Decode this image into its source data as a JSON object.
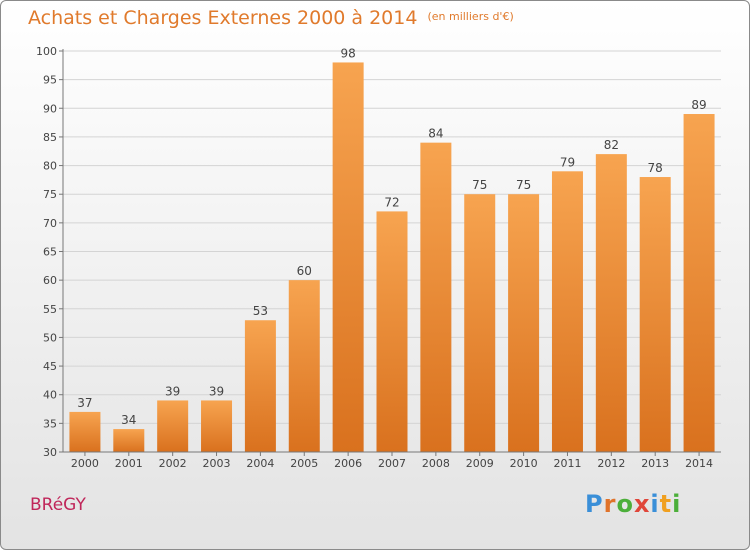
{
  "header": {
    "title": "Achats et Charges Externes 2000 à 2014",
    "unit": "(en milliers d'€)"
  },
  "footer": {
    "commune": "BRéGY",
    "brand_letters": [
      {
        "char": "P",
        "color": "#3a8fd8"
      },
      {
        "char": "r",
        "color": "#e0732a"
      },
      {
        "char": "o",
        "color": "#4caf3a"
      },
      {
        "char": "x",
        "color": "#e0463a"
      },
      {
        "char": "i",
        "color": "#3a8fd8"
      },
      {
        "char": "t",
        "color": "#f0a020"
      },
      {
        "char": "i",
        "color": "#4caf3a"
      }
    ]
  },
  "colors": {
    "bar_top": "#f7a450",
    "bar_bottom": "#d9711e",
    "title": "#e07a2c",
    "commune": "#c0265a"
  },
  "chart_data": {
    "type": "bar",
    "categories": [
      "2000",
      "2001",
      "2002",
      "2003",
      "2004",
      "2005",
      "2006",
      "2007",
      "2008",
      "2009",
      "2010",
      "2011",
      "2012",
      "2013",
      "2014"
    ],
    "values": [
      37,
      34,
      39,
      39,
      53,
      60,
      98,
      72,
      84,
      75,
      75,
      79,
      82,
      78,
      89
    ],
    "title": "Achats et Charges Externes 2000 à 2014",
    "ylim": [
      30,
      100
    ],
    "yticks": [
      30,
      35,
      40,
      45,
      50,
      55,
      60,
      65,
      70,
      75,
      80,
      85,
      90,
      95,
      100
    ],
    "grid": true,
    "data_labels": true
  }
}
